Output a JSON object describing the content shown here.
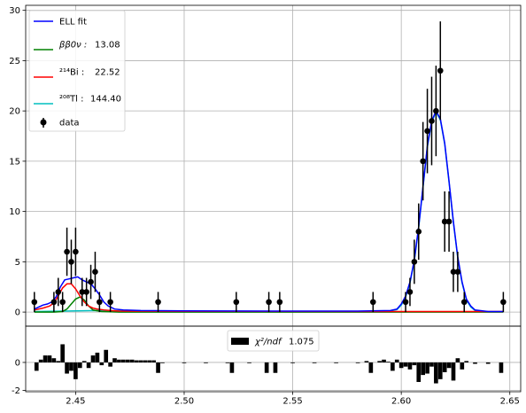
{
  "chart_data": [
    {
      "type": "line",
      "name": "main",
      "xlim": [
        2.427,
        2.655
      ],
      "ylim": [
        -1.4,
        30.5
      ],
      "grid": true,
      "legend_position": "top-left",
      "yticks": [
        0,
        5,
        10,
        15,
        20,
        25,
        30
      ],
      "legend": {
        "fit": "ELL fit",
        "bb0v_label": "ββ0ν :",
        "bb0v_value": "13.08",
        "bi_label": "²¹⁴Bi :",
        "bi_value": "22.52",
        "tl_label": "²⁰⁸Tl :",
        "tl_value": "144.40",
        "data": "data"
      },
      "colors": {
        "fit": "#0000ff",
        "bb0v": "#008000",
        "bi": "#ff0000",
        "tl": "#00bfbf",
        "data": "#000000"
      },
      "data_points": [
        {
          "x": 2.431,
          "y": 1,
          "err": 1
        },
        {
          "x": 2.44,
          "y": 1,
          "err": 1
        },
        {
          "x": 2.442,
          "y": 2,
          "err": 1.4
        },
        {
          "x": 2.444,
          "y": 1,
          "err": 1
        },
        {
          "x": 2.446,
          "y": 6,
          "err": 2.4
        },
        {
          "x": 2.448,
          "y": 5,
          "err": 2.2
        },
        {
          "x": 2.45,
          "y": 6,
          "err": 2.4
        },
        {
          "x": 2.453,
          "y": 2,
          "err": 1.4
        },
        {
          "x": 2.455,
          "y": 2,
          "err": 1.4
        },
        {
          "x": 2.457,
          "y": 3,
          "err": 1.7
        },
        {
          "x": 2.459,
          "y": 4,
          "err": 2
        },
        {
          "x": 2.461,
          "y": 1,
          "err": 1
        },
        {
          "x": 2.466,
          "y": 1,
          "err": 1
        },
        {
          "x": 2.488,
          "y": 1,
          "err": 1
        },
        {
          "x": 2.524,
          "y": 1,
          "err": 1
        },
        {
          "x": 2.539,
          "y": 1,
          "err": 1
        },
        {
          "x": 2.544,
          "y": 1,
          "err": 1
        },
        {
          "x": 2.587,
          "y": 1,
          "err": 1
        },
        {
          "x": 2.602,
          "y": 1,
          "err": 1
        },
        {
          "x": 2.604,
          "y": 2,
          "err": 1.4
        },
        {
          "x": 2.606,
          "y": 5,
          "err": 2.2
        },
        {
          "x": 2.608,
          "y": 8,
          "err": 2.8
        },
        {
          "x": 2.61,
          "y": 15,
          "err": 3.9
        },
        {
          "x": 2.612,
          "y": 18,
          "err": 4.2
        },
        {
          "x": 2.614,
          "y": 19,
          "err": 4.4
        },
        {
          "x": 2.616,
          "y": 20,
          "err": 4.5
        },
        {
          "x": 2.618,
          "y": 24,
          "err": 4.9
        },
        {
          "x": 2.62,
          "y": 9,
          "err": 3
        },
        {
          "x": 2.622,
          "y": 9,
          "err": 3
        },
        {
          "x": 2.624,
          "y": 4,
          "err": 2
        },
        {
          "x": 2.626,
          "y": 4,
          "err": 2
        },
        {
          "x": 2.629,
          "y": 1,
          "err": 1
        },
        {
          "x": 2.647,
          "y": 1,
          "err": 1
        }
      ],
      "series": [
        {
          "key": "fit",
          "x": [
            2.431,
            2.433,
            2.435,
            2.437,
            2.439,
            2.441,
            2.443,
            2.445,
            2.447,
            2.449,
            2.451,
            2.453,
            2.455,
            2.457,
            2.459,
            2.461,
            2.463,
            2.465,
            2.468,
            2.472,
            2.48,
            2.5,
            2.54,
            2.58,
            2.595,
            2.598,
            2.6,
            2.602,
            2.604,
            2.606,
            2.608,
            2.61,
            2.612,
            2.614,
            2.616,
            2.618,
            2.62,
            2.622,
            2.624,
            2.626,
            2.628,
            2.63,
            2.632,
            2.634,
            2.64,
            2.647
          ],
          "y": [
            0.3,
            0.5,
            0.7,
            0.8,
            1.0,
            1.5,
            2.5,
            3.2,
            3.3,
            3.4,
            3.5,
            3.2,
            3.0,
            2.8,
            2.3,
            1.7,
            1.0,
            0.6,
            0.3,
            0.2,
            0.15,
            0.12,
            0.1,
            0.1,
            0.15,
            0.3,
            0.8,
            1.6,
            3.0,
            5.2,
            8.5,
            12.5,
            16.5,
            19.0,
            20.0,
            19.2,
            16.8,
            13.0,
            9.0,
            5.5,
            3.0,
            1.3,
            0.6,
            0.2,
            0.05,
            0.05
          ]
        },
        {
          "key": "bb0v",
          "x": [
            2.431,
            2.44,
            2.444,
            2.446,
            2.448,
            2.45,
            2.452,
            2.454,
            2.456,
            2.458,
            2.462,
            2.47,
            2.5,
            2.6,
            2.647
          ],
          "y": [
            0.0,
            0.0,
            0.05,
            0.3,
            0.8,
            1.3,
            1.5,
            1.2,
            0.6,
            0.2,
            0.05,
            0.0,
            0.0,
            0.0,
            0.0
          ]
        },
        {
          "key": "bi",
          "x": [
            2.431,
            2.435,
            2.438,
            2.44,
            2.442,
            2.444,
            2.446,
            2.448,
            2.45,
            2.452,
            2.454,
            2.456,
            2.458,
            2.46,
            2.463,
            2.466,
            2.47,
            2.5,
            2.6,
            2.647
          ],
          "y": [
            0.2,
            0.4,
            0.6,
            0.9,
            1.6,
            2.4,
            2.8,
            2.8,
            2.3,
            1.6,
            1.0,
            0.6,
            0.4,
            0.3,
            0.2,
            0.15,
            0.1,
            0.08,
            0.05,
            0.05
          ]
        },
        {
          "key": "tl",
          "x": [
            2.431,
            2.445,
            2.46,
            2.47,
            2.5,
            2.54,
            2.58,
            2.595,
            2.598,
            2.6,
            2.602,
            2.604,
            2.606,
            2.608,
            2.61,
            2.612,
            2.614,
            2.616,
            2.618,
            2.62,
            2.622,
            2.624,
            2.626,
            2.628,
            2.63,
            2.632,
            2.634,
            2.64,
            2.647
          ],
          "y": [
            0.05,
            0.1,
            0.15,
            0.12,
            0.1,
            0.08,
            0.08,
            0.12,
            0.25,
            0.7,
            1.5,
            2.9,
            5.1,
            8.4,
            12.4,
            16.4,
            18.9,
            19.9,
            19.1,
            16.7,
            12.9,
            8.9,
            5.4,
            2.9,
            1.2,
            0.5,
            0.15,
            0.03,
            0.03
          ]
        }
      ]
    },
    {
      "type": "bar",
      "name": "residuals",
      "xlim": [
        2.427,
        2.655
      ],
      "ylim": [
        -2.1,
        2.6
      ],
      "grid": true,
      "yticks": [
        -2,
        0
      ],
      "xticks": [
        "2.45",
        "2.50",
        "2.55",
        "2.60",
        "2.65"
      ],
      "xtick_values": [
        2.45,
        2.5,
        2.55,
        2.6,
        2.65
      ],
      "bin_width": 0.002,
      "legend": {
        "label_main": "χ²/ndf",
        "label_value": "1.075"
      },
      "bars": [
        {
          "x": 2.432,
          "v": -0.6
        },
        {
          "x": 2.434,
          "v": 0.2
        },
        {
          "x": 2.436,
          "v": 0.5
        },
        {
          "x": 2.438,
          "v": 0.5
        },
        {
          "x": 2.44,
          "v": 0.3
        },
        {
          "x": 2.442,
          "v": 0.1
        },
        {
          "x": 2.444,
          "v": 1.3
        },
        {
          "x": 2.446,
          "v": -0.8
        },
        {
          "x": 2.448,
          "v": -0.6
        },
        {
          "x": 2.45,
          "v": -1.2
        },
        {
          "x": 2.452,
          "v": -0.4
        },
        {
          "x": 2.454,
          "v": 0.1
        },
        {
          "x": 2.456,
          "v": -0.4
        },
        {
          "x": 2.458,
          "v": 0.5
        },
        {
          "x": 2.46,
          "v": 0.7
        },
        {
          "x": 2.462,
          "v": -0.2
        },
        {
          "x": 2.464,
          "v": 0.9
        },
        {
          "x": 2.466,
          "v": -0.3
        },
        {
          "x": 2.468,
          "v": 0.3
        },
        {
          "x": 2.47,
          "v": 0.2
        },
        {
          "x": 2.472,
          "v": 0.2
        },
        {
          "x": 2.474,
          "v": 0.2
        },
        {
          "x": 2.476,
          "v": 0.2
        },
        {
          "x": 2.478,
          "v": 0.15
        },
        {
          "x": 2.48,
          "v": 0.15
        },
        {
          "x": 2.482,
          "v": 0.15
        },
        {
          "x": 2.484,
          "v": 0.15
        },
        {
          "x": 2.486,
          "v": 0.15
        },
        {
          "x": 2.488,
          "v": -0.75
        },
        {
          "x": 2.49,
          "v": -0.05
        },
        {
          "x": 2.5,
          "v": -0.05
        },
        {
          "x": 2.51,
          "v": -0.05
        },
        {
          "x": 2.52,
          "v": -0.05
        },
        {
          "x": 2.522,
          "v": -0.75
        },
        {
          "x": 2.53,
          "v": -0.05
        },
        {
          "x": 2.538,
          "v": -0.75
        },
        {
          "x": 2.542,
          "v": -0.75
        },
        {
          "x": 2.55,
          "v": -0.05
        },
        {
          "x": 2.56,
          "v": -0.05
        },
        {
          "x": 2.57,
          "v": -0.05
        },
        {
          "x": 2.58,
          "v": -0.05
        },
        {
          "x": 2.584,
          "v": 0.1
        },
        {
          "x": 2.586,
          "v": -0.75
        },
        {
          "x": 2.59,
          "v": 0.1
        },
        {
          "x": 2.592,
          "v": 0.2
        },
        {
          "x": 2.594,
          "v": 0.05
        },
        {
          "x": 2.596,
          "v": -0.6
        },
        {
          "x": 2.598,
          "v": 0.2
        },
        {
          "x": 2.6,
          "v": -0.4
        },
        {
          "x": 2.602,
          "v": -0.3
        },
        {
          "x": 2.604,
          "v": -0.5
        },
        {
          "x": 2.606,
          "v": -0.2
        },
        {
          "x": 2.608,
          "v": -1.4
        },
        {
          "x": 2.61,
          "v": -0.9
        },
        {
          "x": 2.612,
          "v": -0.8
        },
        {
          "x": 2.614,
          "v": -0.3
        },
        {
          "x": 2.616,
          "v": -1.5
        },
        {
          "x": 2.618,
          "v": -1.2
        },
        {
          "x": 2.62,
          "v": -0.7
        },
        {
          "x": 2.622,
          "v": -0.4
        },
        {
          "x": 2.624,
          "v": -1.3
        },
        {
          "x": 2.626,
          "v": 0.3
        },
        {
          "x": 2.628,
          "v": -0.5
        },
        {
          "x": 2.63,
          "v": 0.1
        },
        {
          "x": 2.634,
          "v": -0.1
        },
        {
          "x": 2.64,
          "v": -0.1
        },
        {
          "x": 2.646,
          "v": -0.75
        }
      ]
    }
  ]
}
